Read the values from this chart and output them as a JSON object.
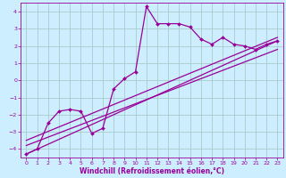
{
  "xlabel": "Windchill (Refroidissement éolien,°C)",
  "ylabel": "",
  "bg_color": "#cceeff",
  "grid_color": "#aacccc",
  "line_color": "#990099",
  "xlim": [
    -0.5,
    23.5
  ],
  "ylim": [
    -4.5,
    4.5
  ],
  "xticks": [
    0,
    1,
    2,
    3,
    4,
    5,
    6,
    7,
    8,
    9,
    10,
    11,
    12,
    13,
    14,
    15,
    16,
    17,
    18,
    19,
    20,
    21,
    22,
    23
  ],
  "yticks": [
    -4,
    -3,
    -2,
    -1,
    0,
    1,
    2,
    3,
    4
  ],
  "series1_x": [
    0,
    1,
    2,
    3,
    4,
    5,
    6,
    7,
    8,
    9,
    10,
    11,
    12,
    13,
    14,
    15,
    16,
    17,
    18,
    19,
    20,
    21,
    22,
    23
  ],
  "series1_y": [
    -4.3,
    -4.0,
    -2.5,
    -1.8,
    -1.7,
    -1.8,
    -3.1,
    -2.8,
    -0.5,
    0.1,
    0.5,
    4.3,
    3.3,
    3.3,
    3.3,
    3.1,
    2.4,
    2.1,
    2.5,
    2.1,
    2.0,
    1.8,
    2.1,
    2.3
  ],
  "series2_x": [
    0,
    23
  ],
  "series2_y": [
    -4.3,
    2.3
  ],
  "series3_x": [
    0,
    23
  ],
  "series3_y": [
    -3.8,
    1.8
  ],
  "series4_x": [
    0,
    23
  ],
  "series4_y": [
    -3.5,
    2.5
  ],
  "tick_fontsize": 4.5,
  "xlabel_fontsize": 5.5,
  "marker_size": 2.0,
  "line_width": 0.9
}
